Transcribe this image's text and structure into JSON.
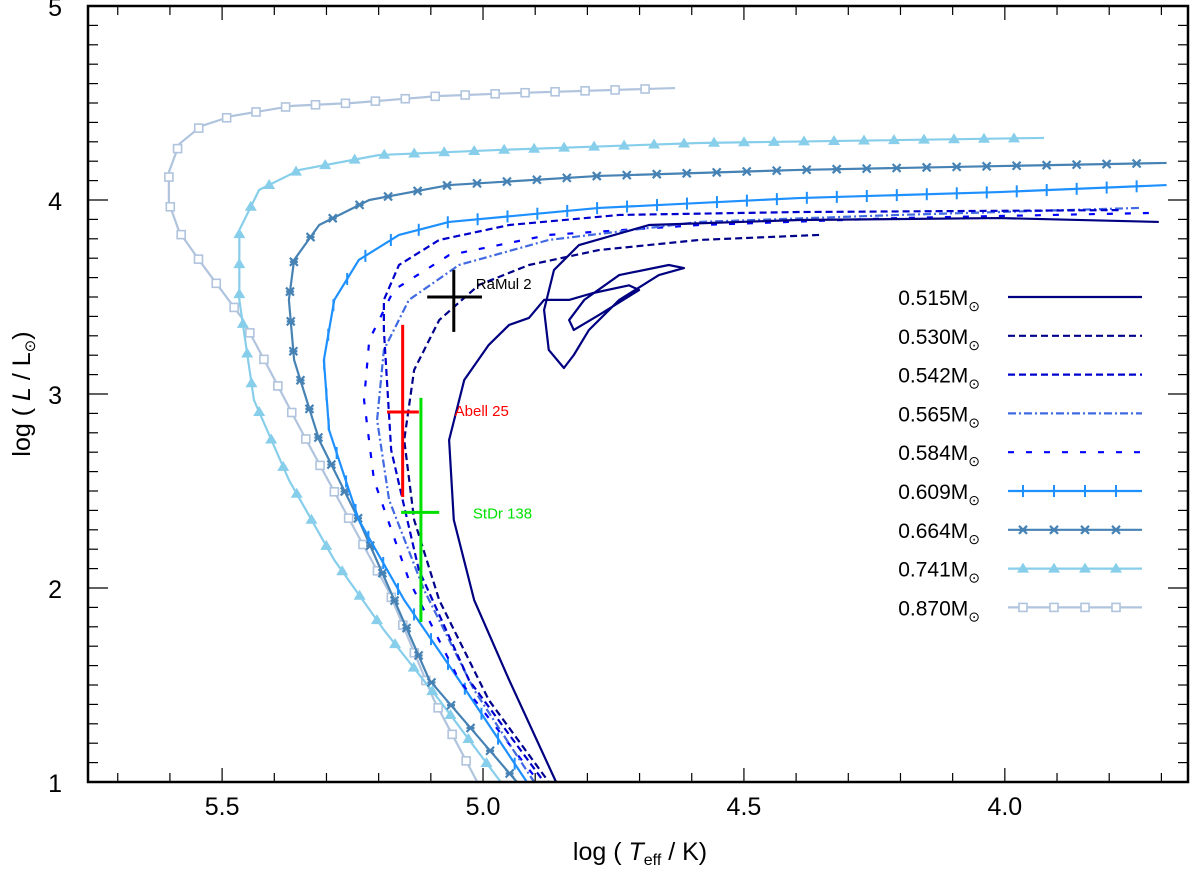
{
  "chart_data": {
    "type": "line",
    "title": "",
    "xlabel": {
      "prefix": "log ( ",
      "var": "T",
      "sub": "eff",
      "suffix": " / K)"
    },
    "ylabel": {
      "prefix": "log ( ",
      "var": "L",
      "suffix": " / L",
      "sun": "⊙",
      "close": ")"
    },
    "xlim": [
      5.757,
      3.649
    ],
    "ylim": [
      1,
      5
    ],
    "x_reversed": true,
    "x_ticks": [
      "5.5",
      "5.0",
      "4.5",
      "4.0"
    ],
    "y_ticks": [
      "1",
      "2",
      "3",
      "4",
      "5"
    ],
    "grid": false,
    "legend_position": "right",
    "series": [
      {
        "name": "0.515M",
        "sun": "⊙",
        "color": "#000080",
        "style": "solid",
        "marker": "none",
        "points": [
          [
            3.705,
            3.887
          ],
          [
            4.011,
            3.907
          ],
          [
            4.395,
            3.897
          ],
          [
            4.682,
            3.871
          ],
          [
            4.816,
            3.768
          ],
          [
            4.864,
            3.639
          ],
          [
            4.883,
            3.433
          ],
          [
            4.874,
            3.227
          ],
          [
            4.845,
            3.134
          ],
          [
            4.826,
            3.201
          ],
          [
            4.797,
            3.33
          ],
          [
            4.739,
            3.485
          ],
          [
            4.663,
            3.613
          ],
          [
            4.615,
            3.649
          ],
          [
            4.644,
            3.665
          ],
          [
            4.739,
            3.613
          ],
          [
            4.806,
            3.485
          ],
          [
            4.835,
            3.381
          ],
          [
            4.826,
            3.33
          ],
          [
            4.778,
            3.407
          ],
          [
            4.701,
            3.536
          ],
          [
            4.72,
            3.56
          ],
          [
            4.79,
            3.52
          ],
          [
            4.835,
            3.485
          ],
          [
            4.883,
            3.485
          ],
          [
            4.912,
            3.392
          ],
          [
            4.95,
            3.356
          ],
          [
            4.989,
            3.253
          ],
          [
            5.036,
            3.072
          ],
          [
            5.065,
            2.763
          ],
          [
            5.056,
            2.351
          ],
          [
            5.017,
            1.938
          ],
          [
            4.95,
            1.526
          ],
          [
            4.86,
            1.0
          ]
        ]
      },
      {
        "name": "0.530M",
        "sun": "⊙",
        "color": "#00008b",
        "style": "dashed",
        "marker": "none",
        "points": [
          [
            4.356,
            3.82
          ],
          [
            4.586,
            3.794
          ],
          [
            4.778,
            3.742
          ],
          [
            4.912,
            3.665
          ],
          [
            5.008,
            3.562
          ],
          [
            5.084,
            3.381
          ],
          [
            5.132,
            3.124
          ],
          [
            5.151,
            2.763
          ],
          [
            5.132,
            2.351
          ],
          [
            5.084,
            1.938
          ],
          [
            4.989,
            1.423
          ],
          [
            4.874,
            1.0
          ]
        ]
      },
      {
        "name": "0.542M",
        "sun": "⊙",
        "color": "#0000cd",
        "style": "dashed",
        "marker": "none",
        "points": [
          [
            3.782,
            3.948
          ],
          [
            4.395,
            3.938
          ],
          [
            4.739,
            3.923
          ],
          [
            4.95,
            3.871
          ],
          [
            5.084,
            3.794
          ],
          [
            5.161,
            3.665
          ],
          [
            5.19,
            3.485
          ],
          [
            5.19,
            3.33
          ],
          [
            5.176,
            2.711
          ],
          [
            5.123,
            2.093
          ],
          [
            5.027,
            1.526
          ],
          [
            4.883,
            1.0
          ]
        ]
      },
      {
        "name": "0.565M",
        "sun": "⊙",
        "color": "#4169e1",
        "style": "dashdot",
        "marker": "none",
        "points": [
          [
            3.743,
            3.959
          ],
          [
            4.203,
            3.923
          ],
          [
            4.586,
            3.887
          ],
          [
            4.874,
            3.794
          ],
          [
            5.046,
            3.665
          ],
          [
            5.142,
            3.485
          ],
          [
            5.19,
            3.227
          ],
          [
            5.203,
            2.866
          ],
          [
            5.18,
            2.454
          ],
          [
            5.113,
            1.99
          ],
          [
            5.017,
            1.474
          ],
          [
            4.902,
            1.0
          ]
        ]
      },
      {
        "name": "0.584M",
        "sun": "⊙",
        "color": "#0000ff",
        "style": "sparse-dash",
        "marker": "none",
        "points": [
          [
            3.724,
            3.933
          ],
          [
            4.203,
            3.907
          ],
          [
            4.586,
            3.871
          ],
          [
            4.874,
            3.82
          ],
          [
            5.065,
            3.716
          ],
          [
            5.171,
            3.536
          ],
          [
            5.218,
            3.278
          ],
          [
            5.228,
            2.969
          ],
          [
            5.209,
            2.557
          ],
          [
            5.142,
            2.041
          ],
          [
            5.046,
            1.526
          ],
          [
            4.893,
            1.0
          ]
        ]
      },
      {
        "name": "0.609M",
        "sun": "⊙",
        "color": "#1e90ff",
        "style": "solid",
        "marker": "plus",
        "points": [
          [
            3.69,
            4.077
          ],
          [
            4.011,
            4.041
          ],
          [
            4.395,
            4.01
          ],
          [
            4.778,
            3.959
          ],
          [
            5.065,
            3.887
          ],
          [
            5.161,
            3.82
          ],
          [
            5.238,
            3.691
          ],
          [
            5.285,
            3.485
          ],
          [
            5.305,
            3.175
          ],
          [
            5.295,
            2.814
          ],
          [
            5.238,
            2.351
          ],
          [
            5.151,
            1.938
          ],
          [
            5.046,
            1.526
          ],
          [
            4.916,
            1.0
          ]
        ]
      },
      {
        "name": "0.664M",
        "sun": "⊙",
        "color": "#4682b4",
        "style": "solid",
        "marker": "asterisk",
        "points": [
          [
            3.69,
            4.191
          ],
          [
            4.011,
            4.175
          ],
          [
            4.395,
            4.155
          ],
          [
            4.778,
            4.124
          ],
          [
            5.065,
            4.077
          ],
          [
            5.218,
            4.0
          ],
          [
            5.314,
            3.871
          ],
          [
            5.362,
            3.691
          ],
          [
            5.372,
            3.485
          ],
          [
            5.362,
            3.175
          ],
          [
            5.314,
            2.763
          ],
          [
            5.238,
            2.351
          ],
          [
            5.17,
            1.938
          ],
          [
            5.103,
            1.526
          ],
          [
            4.935,
            1.0
          ]
        ]
      },
      {
        "name": "0.741M",
        "sun": "⊙",
        "color": "#87ceeb",
        "style": "solid",
        "marker": "triangle",
        "points": [
          [
            3.925,
            4.32
          ],
          [
            4.586,
            4.294
          ],
          [
            4.969,
            4.258
          ],
          [
            5.199,
            4.232
          ],
          [
            5.352,
            4.155
          ],
          [
            5.429,
            4.052
          ],
          [
            5.467,
            3.845
          ],
          [
            5.467,
            3.485
          ],
          [
            5.439,
            2.969
          ],
          [
            5.372,
            2.557
          ],
          [
            5.285,
            2.144
          ],
          [
            5.19,
            1.784
          ],
          [
            5.084,
            1.423
          ],
          [
            4.966,
            1.0
          ]
        ]
      },
      {
        "name": "0.870M",
        "sun": "⊙",
        "color": "#b0c4de",
        "style": "solid",
        "marker": "square",
        "points": [
          [
            4.632,
            4.577
          ],
          [
            4.931,
            4.552
          ],
          [
            5.084,
            4.536
          ],
          [
            5.251,
            4.5
          ],
          [
            5.366,
            4.485
          ],
          [
            5.481,
            4.433
          ],
          [
            5.54,
            4.381
          ],
          [
            5.582,
            4.289
          ],
          [
            5.602,
            4.144
          ],
          [
            5.602,
            3.985
          ],
          [
            5.582,
            3.835
          ],
          [
            5.54,
            3.675
          ],
          [
            5.462,
            3.392
          ],
          [
            5.406,
            3.108
          ],
          [
            5.352,
            2.83
          ],
          [
            5.295,
            2.546
          ],
          [
            5.238,
            2.263
          ],
          [
            5.18,
            1.979
          ],
          [
            5.094,
            1.423
          ],
          [
            5.011,
            1.0
          ]
        ]
      }
    ],
    "objects": [
      {
        "name": "RaMul 2",
        "color": "#000000",
        "logT": 5.056,
        "logT_err": [
          5.107,
          5.002
        ],
        "logL": 3.5,
        "logL_err": [
          3.32,
          3.64
        ]
      },
      {
        "name": "Abell 25",
        "color": "#ff0000",
        "logT": 5.154,
        "logT_err": [
          5.184,
          5.123
        ],
        "logL": 2.907,
        "logL_err": [
          2.469,
          3.356
        ]
      },
      {
        "name": "StDr 138",
        "color": "#00e000",
        "logT": 5.119,
        "logT_err": [
          5.157,
          5.084
        ],
        "logL": 2.39,
        "logL_err": [
          1.825,
          2.98
        ]
      }
    ]
  }
}
